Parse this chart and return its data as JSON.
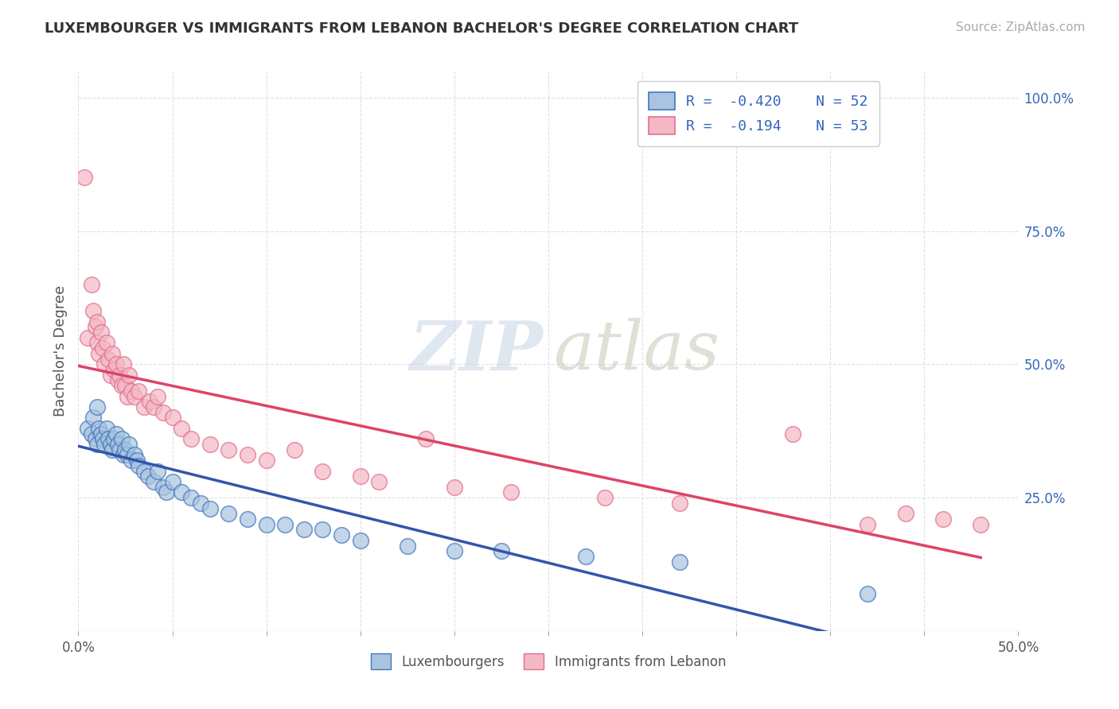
{
  "title": "LUXEMBOURGER VS IMMIGRANTS FROM LEBANON BACHELOR'S DEGREE CORRELATION CHART",
  "source": "Source: ZipAtlas.com",
  "ylabel": "Bachelor's Degree",
  "xlim": [
    0.0,
    0.5
  ],
  "ylim": [
    0.0,
    1.05
  ],
  "xtick_positions": [
    0.0,
    0.05,
    0.1,
    0.15,
    0.2,
    0.25,
    0.3,
    0.35,
    0.4,
    0.45,
    0.5
  ],
  "xtick_labels": [
    "0.0%",
    "",
    "",
    "",
    "",
    "",
    "",
    "",
    "",
    "",
    "50.0%"
  ],
  "yticks_right": [
    0.25,
    0.5,
    0.75,
    1.0
  ],
  "ytick_right_labels": [
    "25.0%",
    "50.0%",
    "75.0%",
    "100.0%"
  ],
  "blue_dot_color": "#A8C4E0",
  "blue_dot_edge": "#4477BB",
  "pink_dot_color": "#F4B8C4",
  "pink_dot_edge": "#E07090",
  "trend_blue": "#3355AA",
  "trend_pink": "#DD4466",
  "legend_R_blue": "-0.420",
  "legend_N_blue": "52",
  "legend_R_pink": "-0.194",
  "legend_N_pink": "53",
  "blue_x": [
    0.005,
    0.007,
    0.008,
    0.009,
    0.01,
    0.01,
    0.011,
    0.012,
    0.013,
    0.014,
    0.015,
    0.016,
    0.017,
    0.018,
    0.019,
    0.02,
    0.021,
    0.022,
    0.023,
    0.024,
    0.025,
    0.026,
    0.027,
    0.028,
    0.03,
    0.031,
    0.032,
    0.035,
    0.037,
    0.04,
    0.042,
    0.045,
    0.047,
    0.05,
    0.055,
    0.06,
    0.065,
    0.07,
    0.08,
    0.09,
    0.1,
    0.11,
    0.12,
    0.13,
    0.14,
    0.15,
    0.175,
    0.2,
    0.225,
    0.27,
    0.32,
    0.42
  ],
  "blue_y": [
    0.38,
    0.37,
    0.4,
    0.36,
    0.42,
    0.35,
    0.38,
    0.37,
    0.36,
    0.35,
    0.38,
    0.36,
    0.35,
    0.34,
    0.36,
    0.37,
    0.35,
    0.34,
    0.36,
    0.33,
    0.34,
    0.33,
    0.35,
    0.32,
    0.33,
    0.32,
    0.31,
    0.3,
    0.29,
    0.28,
    0.3,
    0.27,
    0.26,
    0.28,
    0.26,
    0.25,
    0.24,
    0.23,
    0.22,
    0.21,
    0.2,
    0.2,
    0.19,
    0.19,
    0.18,
    0.17,
    0.16,
    0.15,
    0.15,
    0.14,
    0.13,
    0.07
  ],
  "pink_x": [
    0.003,
    0.005,
    0.007,
    0.008,
    0.009,
    0.01,
    0.01,
    0.011,
    0.012,
    0.013,
    0.014,
    0.015,
    0.016,
    0.017,
    0.018,
    0.019,
    0.02,
    0.021,
    0.022,
    0.023,
    0.024,
    0.025,
    0.026,
    0.027,
    0.028,
    0.03,
    0.032,
    0.035,
    0.038,
    0.04,
    0.042,
    0.045,
    0.05,
    0.055,
    0.06,
    0.07,
    0.08,
    0.09,
    0.1,
    0.115,
    0.13,
    0.15,
    0.16,
    0.185,
    0.2,
    0.23,
    0.28,
    0.32,
    0.38,
    0.42,
    0.44,
    0.46,
    0.48
  ],
  "pink_y": [
    0.85,
    0.55,
    0.65,
    0.6,
    0.57,
    0.54,
    0.58,
    0.52,
    0.56,
    0.53,
    0.5,
    0.54,
    0.51,
    0.48,
    0.52,
    0.49,
    0.5,
    0.47,
    0.48,
    0.46,
    0.5,
    0.46,
    0.44,
    0.48,
    0.45,
    0.44,
    0.45,
    0.42,
    0.43,
    0.42,
    0.44,
    0.41,
    0.4,
    0.38,
    0.36,
    0.35,
    0.34,
    0.33,
    0.32,
    0.34,
    0.3,
    0.29,
    0.28,
    0.36,
    0.27,
    0.26,
    0.25,
    0.24,
    0.37,
    0.2,
    0.22,
    0.21,
    0.2
  ],
  "background_color": "#FFFFFF",
  "grid_color": "#DDDDDD"
}
